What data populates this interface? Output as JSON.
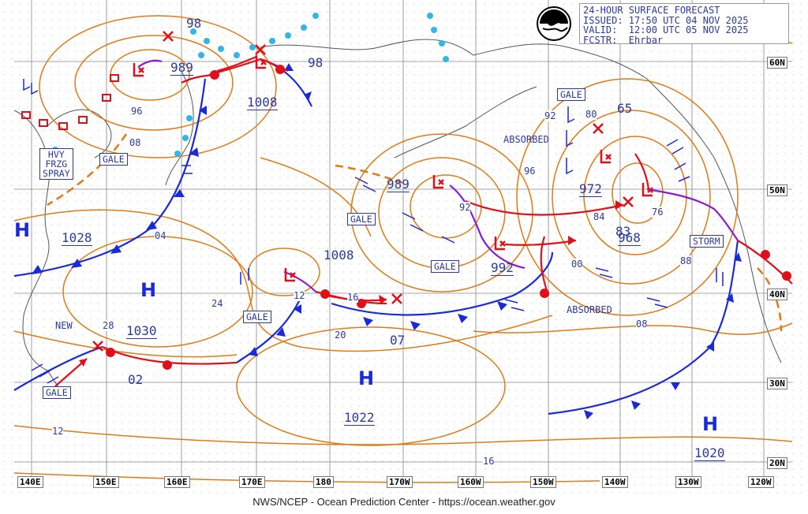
{
  "header": {
    "product": "24-HOUR SURFACE FORECAST",
    "issued": "ISSUED: 17:50 UTC 04 NOV 2025",
    "valid": "VALID:  12:00 UTC 05 NOV 2025",
    "forecaster": "FCSTR:  Ehrbar"
  },
  "credit": "NWS/NCEP - Ocean Prediction Center - https://ocean.weather.gov",
  "lon_labels": [
    "140E",
    "150E",
    "160E",
    "170E",
    "180",
    "170W",
    "160W",
    "150W",
    "140W",
    "130W",
    "120W"
  ],
  "lat_labels": [
    "60N",
    "50N",
    "40N",
    "30N",
    "20N"
  ],
  "high_pressure": [
    {
      "symbol": "H",
      "value": "1028"
    },
    {
      "symbol": "H",
      "value": "1030"
    },
    {
      "symbol": "H",
      "value": "1022"
    },
    {
      "symbol": "H",
      "value": "1020"
    }
  ],
  "low_pressure": [
    "989",
    "989",
    "1008",
    "992",
    "972",
    "968"
  ],
  "pressure_labels": [
    "98",
    "98",
    "1008",
    "65",
    "83",
    "02",
    "07",
    "12",
    "16",
    "04",
    "24",
    "28",
    "96",
    "92",
    "84",
    "88",
    "00",
    "08",
    "76",
    "20",
    "12",
    "16",
    "80",
    "92",
    "96",
    "08"
  ],
  "warnings": [
    "HVY\nFRZG\nSPRAY",
    "GALE",
    "GALE",
    "GALE",
    "GALE",
    "GALE",
    "GALE",
    "STORM"
  ],
  "annotations": [
    "ABSORBED",
    "ABSORBED",
    "NEW"
  ],
  "colors": {
    "isobar": "#e07a14",
    "cold_front": "#1a2ad8",
    "warm_front": "#e0101a",
    "occluded": "#8a1ad8",
    "text": "#2b3aa0",
    "ice": "#33b5e5",
    "grid": "#7f7f7f"
  }
}
